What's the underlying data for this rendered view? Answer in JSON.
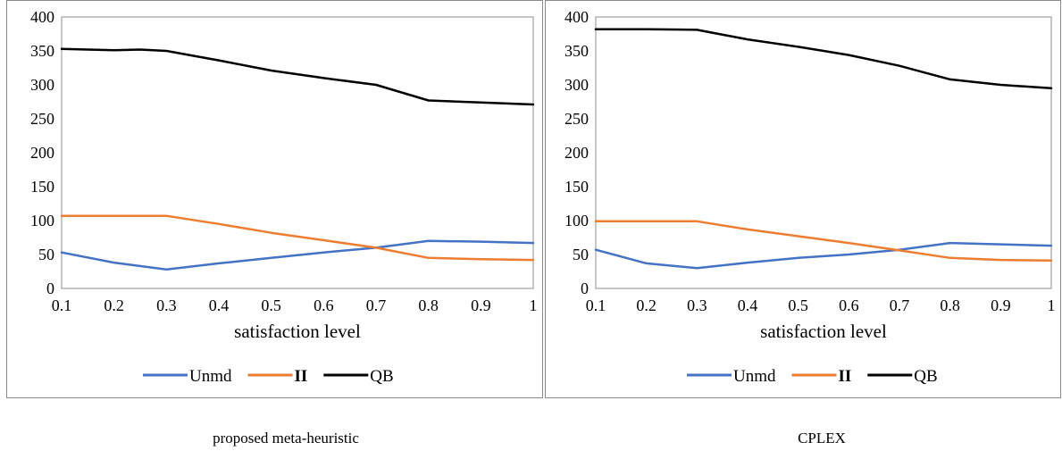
{
  "captions": [
    "proposed meta-heuristic",
    "CPLEX"
  ],
  "chart_data": [
    {
      "type": "line",
      "xlabel": "satisfaction level",
      "xlim": [
        0.1,
        1.0
      ],
      "ylim": [
        0,
        400
      ],
      "xticks": [
        "0.1",
        "0.2",
        "0.3",
        "0.4",
        "0.5",
        "0.6",
        "0.7",
        "0.8",
        "0.9",
        "1"
      ],
      "yticks": [
        "0",
        "50",
        "100",
        "150",
        "200",
        "250",
        "300",
        "350",
        "400"
      ],
      "grid": false,
      "legend": "bottom",
      "series": [
        {
          "name": "Unmd",
          "color": "#4472c4",
          "x": [
            0.1,
            0.2,
            0.3,
            0.4,
            0.5,
            0.6,
            0.7,
            0.8,
            0.9,
            1.0
          ],
          "y": [
            53,
            38,
            28,
            37,
            45,
            53,
            60,
            70,
            69,
            67
          ]
        },
        {
          "name": "II",
          "color": "#ed7d31",
          "x": [
            0.1,
            0.2,
            0.3,
            0.4,
            0.5,
            0.6,
            0.7,
            0.8,
            0.9,
            1.0
          ],
          "y": [
            107,
            107,
            107,
            95,
            82,
            71,
            60,
            45,
            43,
            42
          ]
        },
        {
          "name": "QB",
          "color": "#000000",
          "x": [
            0.1,
            0.2,
            0.25,
            0.3,
            0.4,
            0.5,
            0.6,
            0.7,
            0.8,
            0.9,
            1.0
          ],
          "y": [
            353,
            351,
            352,
            350,
            336,
            321,
            310,
            300,
            277,
            274,
            271
          ]
        }
      ]
    },
    {
      "type": "line",
      "xlabel": "satisfaction level",
      "xlim": [
        0.1,
        1.0
      ],
      "ylim": [
        0,
        400
      ],
      "xticks": [
        "0.1",
        "0.2",
        "0.3",
        "0.4",
        "0.5",
        "0.6",
        "0.7",
        "0.8",
        "0.9",
        "1"
      ],
      "yticks": [
        "0",
        "50",
        "100",
        "150",
        "200",
        "250",
        "300",
        "350",
        "400"
      ],
      "grid": false,
      "legend": "bottom",
      "series": [
        {
          "name": "Unmd",
          "color": "#4472c4",
          "x": [
            0.1,
            0.2,
            0.3,
            0.4,
            0.5,
            0.6,
            0.7,
            0.8,
            0.9,
            1.0
          ],
          "y": [
            57,
            37,
            30,
            38,
            45,
            50,
            57,
            67,
            65,
            63
          ]
        },
        {
          "name": "II",
          "color": "#ed7d31",
          "x": [
            0.1,
            0.2,
            0.3,
            0.4,
            0.5,
            0.6,
            0.7,
            0.8,
            0.9,
            1.0
          ],
          "y": [
            99,
            99,
            99,
            87,
            77,
            67,
            56,
            45,
            42,
            41
          ]
        },
        {
          "name": "QB",
          "color": "#000000",
          "x": [
            0.1,
            0.2,
            0.3,
            0.4,
            0.5,
            0.6,
            0.7,
            0.8,
            0.9,
            1.0
          ],
          "y": [
            382,
            382,
            381,
            367,
            356,
            344,
            328,
            308,
            300,
            295
          ]
        }
      ]
    }
  ]
}
